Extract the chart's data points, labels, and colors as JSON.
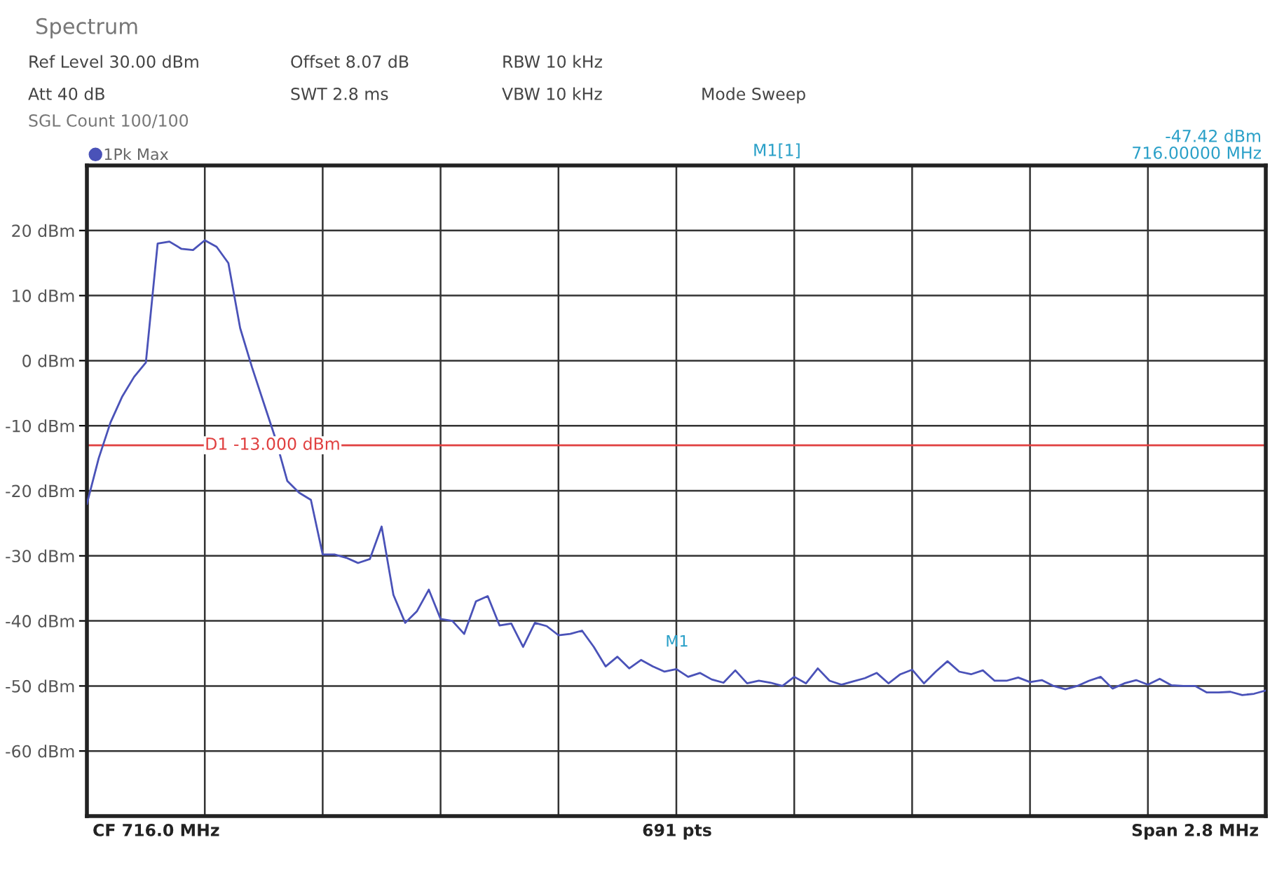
{
  "chart_data": {
    "type": "line",
    "title": "Spectrum",
    "categories": [
      null,
      null,
      null,
      null,
      null,
      null,
      null,
      null,
      null,
      null,
      null,
      null,
      null,
      null,
      null,
      null,
      null,
      null,
      null,
      null,
      null,
      null,
      null,
      null,
      null,
      null,
      null,
      null,
      null,
      null,
      null,
      null,
      null,
      null,
      null,
      null,
      null,
      null,
      null,
      null,
      null,
      null,
      null,
      null,
      null,
      null,
      null,
      null,
      null,
      null,
      null,
      null,
      null,
      null,
      null,
      null,
      null,
      null,
      null,
      null,
      null,
      null,
      null,
      null,
      null,
      null,
      null,
      null,
      null,
      null,
      null,
      null,
      null,
      null,
      null,
      null,
      null,
      null,
      null,
      null,
      null,
      null,
      null,
      null,
      null,
      null,
      null,
      null,
      null,
      null,
      null,
      null,
      null,
      null,
      null,
      null,
      null,
      null,
      null,
      null,
      null
    ],
    "series": [
      {
        "name": "1Pk Max",
        "color": "#4a52b8",
        "values": [
          -22.0,
          -15.0,
          -9.5,
          -5.5,
          -2.5,
          -0.3,
          18.0,
          18.3,
          17.2,
          17.0,
          18.5,
          17.5,
          15.0,
          5.0,
          -1.0,
          -6.5,
          -12.0,
          -18.5,
          -20.3,
          -21.4,
          -29.8,
          -29.8,
          -30.3,
          -31.1,
          -30.5,
          -25.5,
          -36.0,
          -40.3,
          -38.5,
          -35.2,
          -39.7,
          -40.0,
          -42.0,
          -37.0,
          -36.2,
          -40.7,
          -40.4,
          -44.0,
          -40.3,
          -40.8,
          -42.2,
          -42.0,
          -41.5,
          -44.0,
          -47.0,
          -45.5,
          -47.3,
          -46.0,
          -47.0,
          -47.8,
          -47.42,
          -48.6,
          -48.0,
          -49.0,
          -49.5,
          -47.6,
          -49.6,
          -49.2,
          -49.5,
          -50.0,
          -48.6,
          -49.6,
          -47.3,
          -49.2,
          -49.8,
          -49.3,
          -48.8,
          -48.0,
          -49.6,
          -48.2,
          -47.5,
          -49.6,
          -47.8,
          -46.2,
          -47.8,
          -48.2,
          -47.6,
          -49.2,
          -49.2,
          -48.7,
          -49.4,
          -49.1,
          -50.0,
          -50.5,
          -50.0,
          -49.2,
          -48.6,
          -50.4,
          -49.6,
          -49.1,
          -49.8,
          -48.9,
          -49.9,
          -50.0,
          -50.0,
          -51.0,
          -51.0,
          -50.9,
          -51.4,
          -51.2,
          -50.7
        ]
      }
    ],
    "ylim": [
      -70,
      30
    ],
    "yticks": [
      {
        "value": -60,
        "label": "-60 dBm"
      },
      {
        "value": -50,
        "label": "-50 dBm"
      },
      {
        "value": -40,
        "label": "-40 dBm"
      },
      {
        "value": -30,
        "label": "-30 dBm"
      },
      {
        "value": -20,
        "label": "-20 dBm"
      },
      {
        "value": -10,
        "label": "-10 dBm"
      },
      {
        "value": 0,
        "label": "0 dBm"
      },
      {
        "value": 10,
        "label": "10 dBm"
      },
      {
        "value": 20,
        "label": "20 dBm"
      }
    ],
    "tick_labels": "y",
    "grid": true,
    "legend": "top left",
    "line_style": "solid",
    "ref_lines": [
      {
        "axis": "y",
        "value": -13,
        "label": "D1 -13.000 dBm",
        "color": "#e04040"
      }
    ],
    "annotations": [
      "Ref Level 30.00 dBm",
      "Offset 8.07 dB",
      "RBW 10 kHz",
      "Att 40 dB",
      "SWT 2.8 ms",
      "VBW 10 kHz",
      "Mode Sweep",
      "SGL Count 100/100",
      "M1[1]",
      "-47.42 dBm",
      "716.00000 MHz",
      "CF 716.0 MHz",
      "691 pts",
      "Span 2.8 MHz",
      "M1"
    ]
  }
}
